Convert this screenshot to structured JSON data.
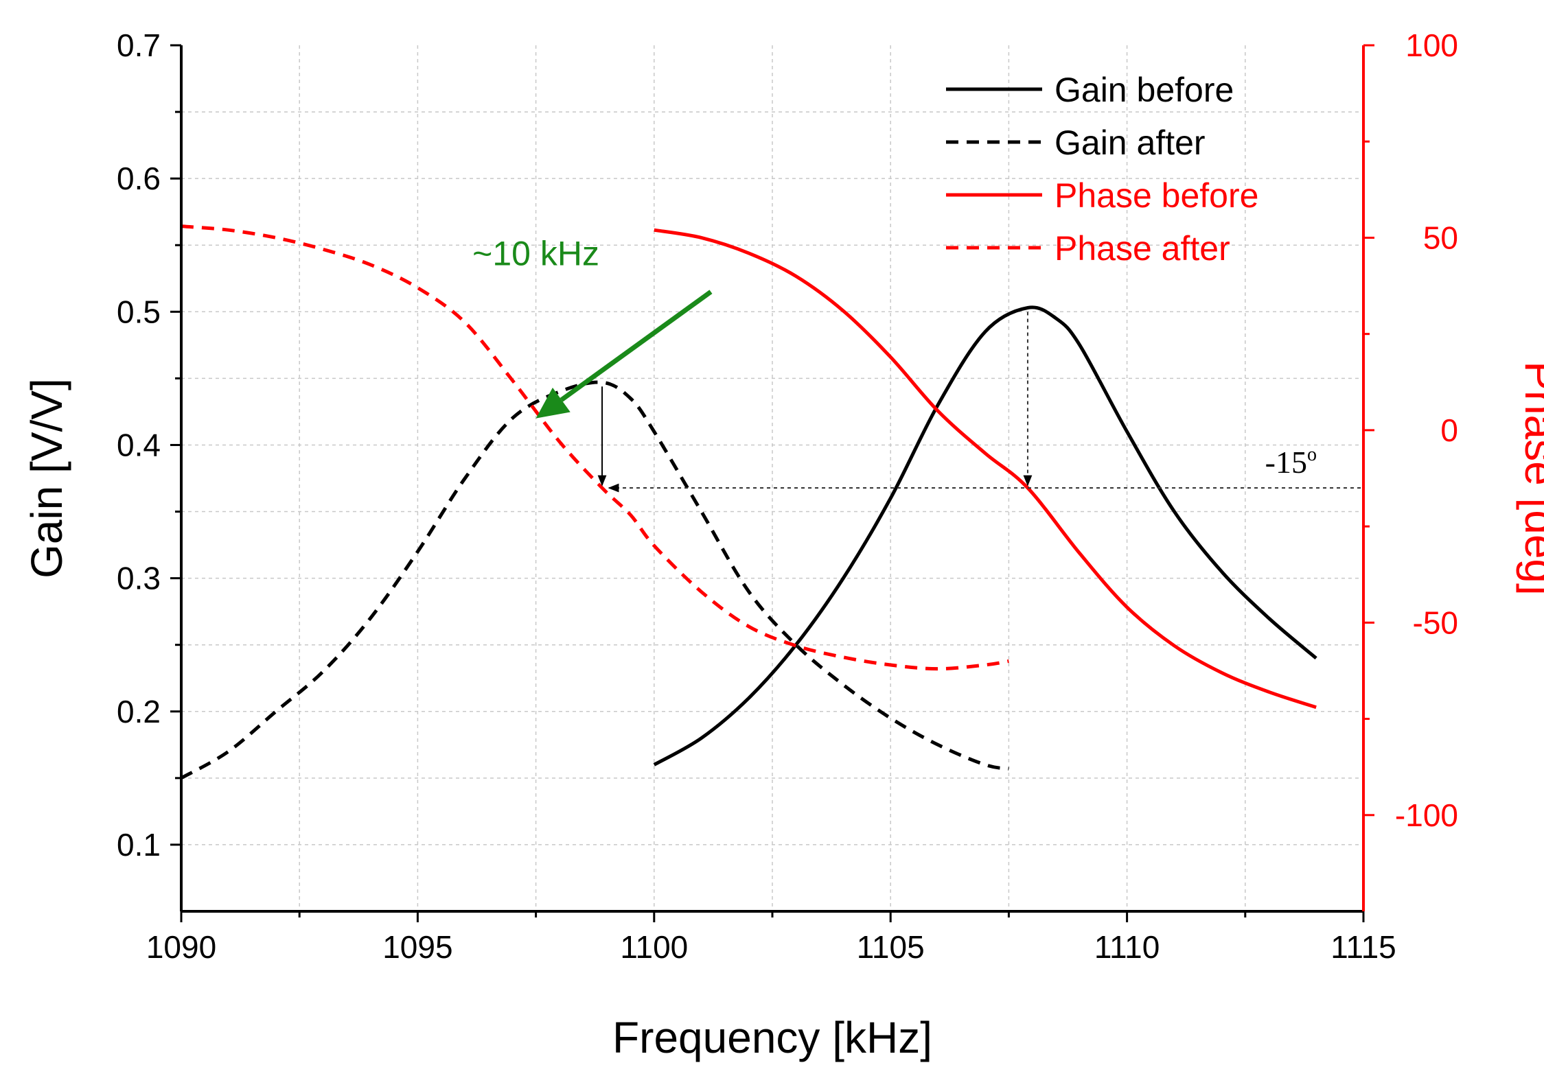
{
  "chart_data": {
    "type": "line",
    "xlabel": "Frequency [kHz]",
    "ylabel": "Gain [V/V]",
    "ylabel_right": "Phase [deg]",
    "xlim": [
      1090,
      1115
    ],
    "ylim": [
      0.05,
      0.7
    ],
    "ylim_right": [
      -125,
      100
    ],
    "x_ticks": [
      1090,
      1095,
      1100,
      1105,
      1110,
      1115
    ],
    "x_tick_labels": [
      "1090",
      "1095",
      "1100",
      "1105",
      "1110",
      "1115"
    ],
    "y_ticks": [
      0.1,
      0.2,
      0.3,
      0.4,
      0.5,
      0.6,
      0.7
    ],
    "y_tick_labels": [
      "0.1",
      "0.2",
      "0.3",
      "0.4",
      "0.5",
      "0.6",
      "0.7"
    ],
    "y_right_ticks": [
      -100,
      -50,
      0,
      50,
      100
    ],
    "y_right_tick_labels": [
      "-100",
      "-50",
      "0",
      "50",
      "100"
    ],
    "grid": true,
    "legend_position": "top-right",
    "colors": {
      "gain": "#000000",
      "phase": "#ff0000",
      "annotation_arrow": "#1a8a1a",
      "grid": "#c8c8c8"
    },
    "series": [
      {
        "name": "Gain before",
        "axis": "left",
        "style": "solid",
        "color": "#000000",
        "x": [
          1100,
          1101,
          1102,
          1103,
          1104,
          1105,
          1106,
          1107,
          1107.9,
          1108.5,
          1109,
          1110,
          1111,
          1112,
          1113,
          1114
        ],
        "y": [
          0.16,
          0.18,
          0.21,
          0.25,
          0.3,
          0.36,
          0.43,
          0.485,
          0.503,
          0.495,
          0.475,
          0.41,
          0.35,
          0.305,
          0.27,
          0.24
        ]
      },
      {
        "name": "Gain after",
        "axis": "left",
        "style": "dashed",
        "color": "#000000",
        "x": [
          1090,
          1091,
          1092,
          1093,
          1094,
          1095,
          1096,
          1097,
          1098,
          1098.9,
          1099.5,
          1100,
          1101,
          1102,
          1103,
          1104,
          1105,
          1106,
          1107,
          1107.5
        ],
        "y": [
          0.15,
          0.17,
          0.2,
          0.23,
          0.27,
          0.32,
          0.375,
          0.42,
          0.44,
          0.447,
          0.435,
          0.41,
          0.35,
          0.29,
          0.25,
          0.22,
          0.195,
          0.175,
          0.16,
          0.157
        ]
      },
      {
        "name": "Phase before",
        "axis": "right",
        "style": "solid",
        "color": "#ff0000",
        "x": [
          1100,
          1101,
          1102,
          1103,
          1104,
          1105,
          1106,
          1107,
          1107.9,
          1109,
          1110,
          1111,
          1112,
          1113,
          1114
        ],
        "y": [
          52,
          50,
          46,
          40,
          31,
          19,
          5,
          -6,
          -15,
          -32,
          -46,
          -56,
          -63,
          -68,
          -72
        ]
      },
      {
        "name": "Phase after",
        "axis": "right",
        "style": "dashed",
        "color": "#ff0000",
        "x": [
          1090,
          1091,
          1092,
          1093,
          1094,
          1095,
          1096,
          1097,
          1098,
          1098.9,
          1099.5,
          1100,
          1101,
          1102,
          1103,
          1104,
          1105,
          1106,
          1107,
          1107.5
        ],
        "y": [
          53,
          52,
          50,
          47,
          43,
          37,
          28,
          13,
          -3,
          -15,
          -22,
          -30,
          -42,
          -51,
          -56,
          -59,
          -61,
          -62,
          -61,
          -60
        ]
      }
    ],
    "annotations": {
      "shift_label": "~10 kHz",
      "phase_label": "-15",
      "phase_label_superscript": "o",
      "reference_phase": -15,
      "peak_before": {
        "x": 1107.9,
        "gain": 0.503
      },
      "peak_after": {
        "x": 1098.9,
        "gain": 0.447
      },
      "shift_arrow": {
        "from": [
          1101.2,
          0.515
        ],
        "to": [
          1097.5,
          0.42
        ]
      }
    }
  }
}
